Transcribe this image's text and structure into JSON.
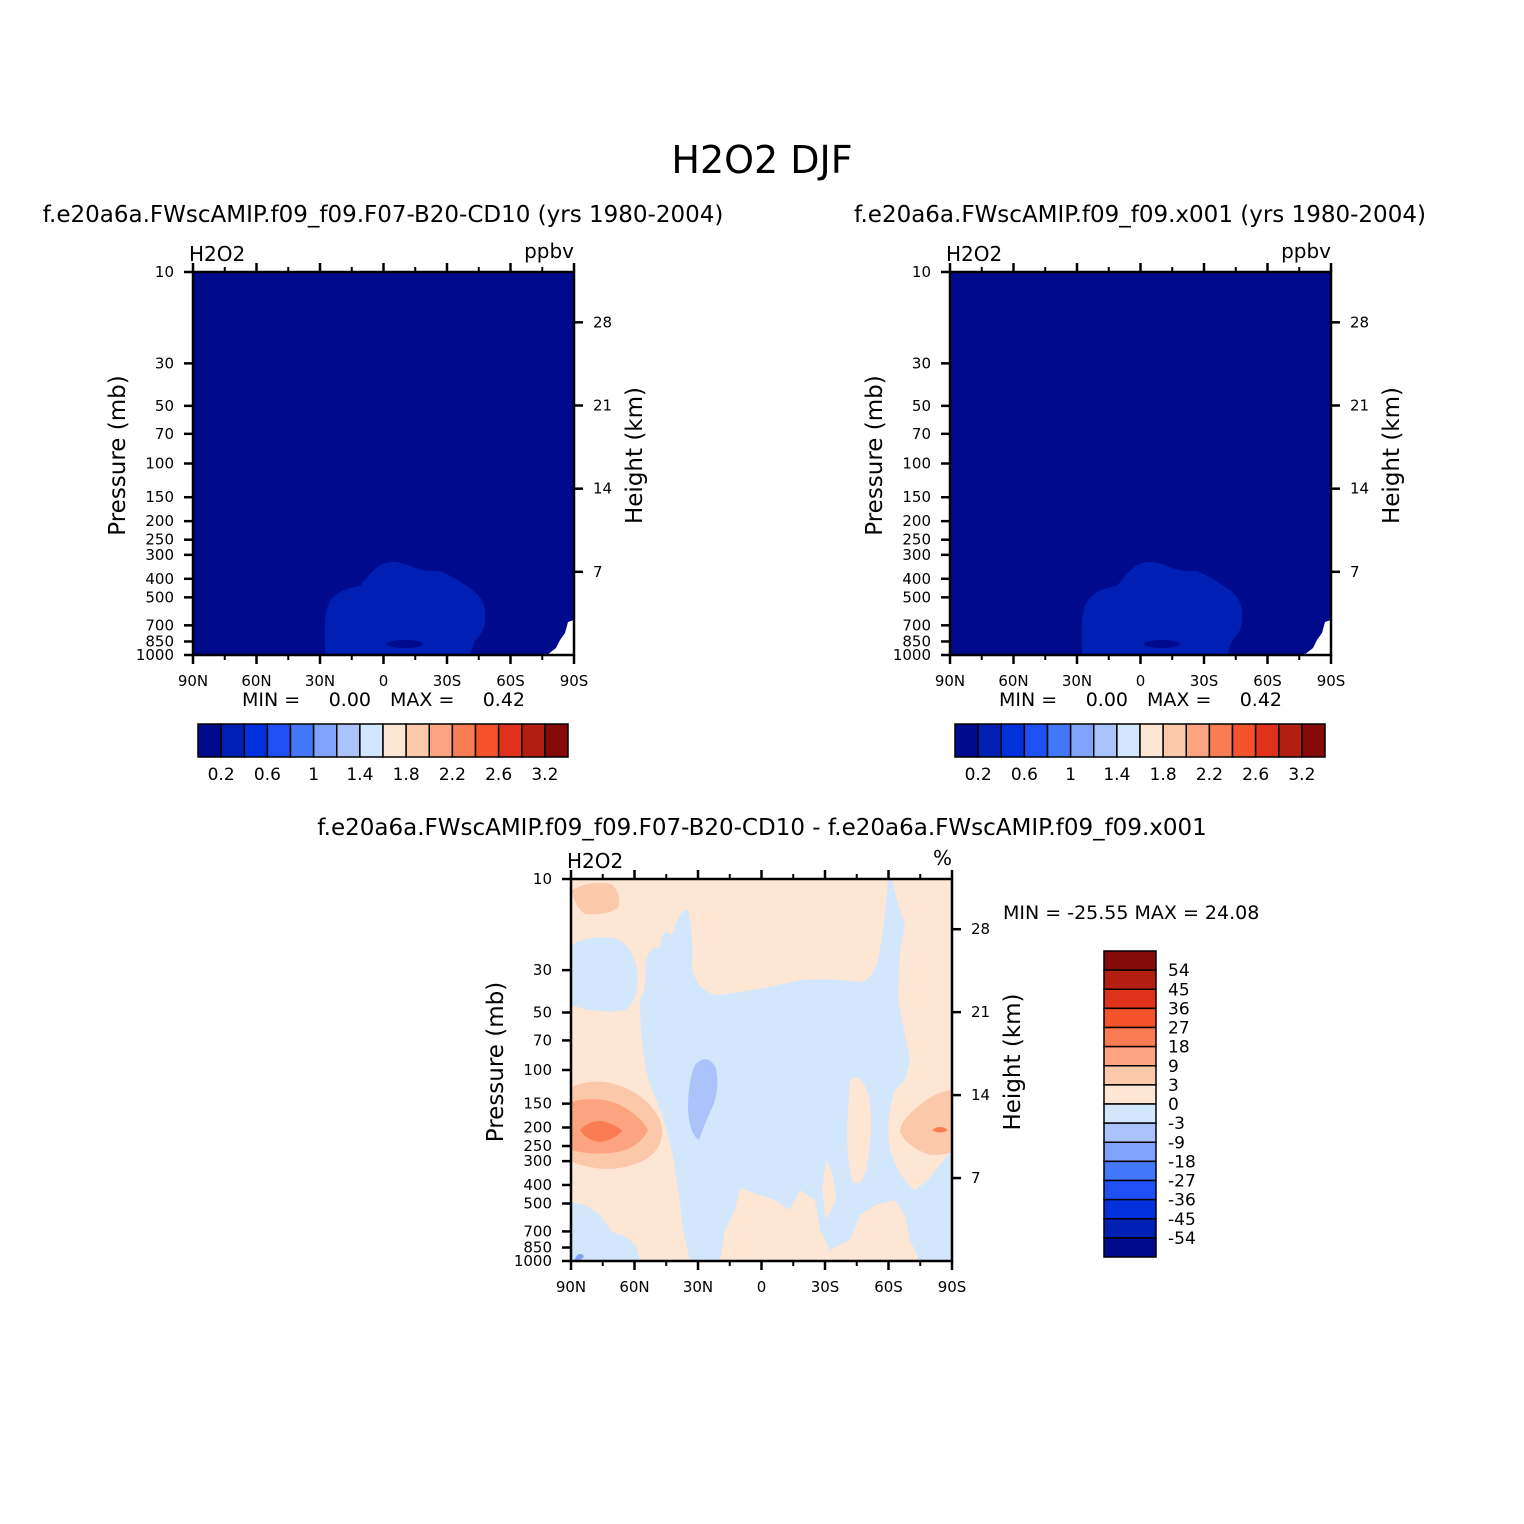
{
  "title": "H2O2 DJF",
  "panels": [
    {
      "case": "f.e20a6a.FWscAMIP.f09_f09.F07-B20-CD10 (yrs 1980-2004)",
      "variable": "H2O2",
      "units": "ppbv",
      "min_label": "MIN =",
      "min_value": "0.00",
      "max_label": "MAX =",
      "max_value": "0.42"
    },
    {
      "case": "f.e20a6a.FWscAMIP.f09_f09.x001 (yrs 1980-2004)",
      "variable": "H2O2",
      "units": "ppbv",
      "min_label": "MIN =",
      "min_value": "0.00",
      "max_label": "MAX =",
      "max_value": "0.42"
    }
  ],
  "diff": {
    "case": "f.e20a6a.FWscAMIP.f09_f09.F07-B20-CD10 - f.e20a6a.FWscAMIP.f09_f09.x001",
    "variable": "H2O2",
    "units": "%",
    "minmax": "MIN = -25.55   MAX =  24.08"
  },
  "chart_data": [
    {
      "type": "heatmap",
      "title": "f.e20a6a.FWscAMIP.f09_f09.F07-B20-CD10 (yrs 1980-2004)",
      "xlabel": "",
      "ylabel": "Pressure (mb)",
      "y2label": "Height (km)",
      "x_ticks": [
        "90N",
        "60N",
        "30N",
        "0",
        "30S",
        "60S",
        "90S"
      ],
      "y_ticks": [
        "10",
        "30",
        "50",
        "70",
        "100",
        "150",
        "200",
        "250",
        "300",
        "400",
        "500",
        "700",
        "850",
        "1000"
      ],
      "y2_ticks": [
        "28",
        "21",
        "14",
        "7"
      ],
      "colorbar_labels": [
        "0.2",
        "0.6",
        "1",
        "1.4",
        "1.8",
        "2.2",
        "2.6",
        "3.2"
      ],
      "colors": [
        "#000a8c",
        "#0020b4",
        "#0031dc",
        "#1f50f5",
        "#4378fa",
        "#7fa3fa",
        "#aac3fa",
        "#d2e6fc",
        "#fde6d4",
        "#fcc8aa",
        "#fca37f",
        "#fa7c52",
        "#f5532c",
        "#e0321a",
        "#b41e10",
        "#870a0a"
      ],
      "min": 0.0,
      "max": 0.42
    },
    {
      "type": "heatmap",
      "title": "f.e20a6a.FWscAMIP.f09_f09.x001 (yrs 1980-2004)",
      "xlabel": "",
      "ylabel": "Pressure (mb)",
      "y2label": "Height (km)",
      "x_ticks": [
        "90N",
        "60N",
        "30N",
        "0",
        "30S",
        "60S",
        "90S"
      ],
      "y_ticks": [
        "10",
        "30",
        "50",
        "70",
        "100",
        "150",
        "200",
        "250",
        "300",
        "400",
        "500",
        "700",
        "850",
        "1000"
      ],
      "y2_ticks": [
        "28",
        "21",
        "14",
        "7"
      ],
      "colorbar_labels": [
        "0.2",
        "0.6",
        "1",
        "1.4",
        "1.8",
        "2.2",
        "2.6",
        "3.2"
      ],
      "min": 0.0,
      "max": 0.42
    },
    {
      "type": "heatmap",
      "title": "f.e20a6a.FWscAMIP.f09_f09.F07-B20-CD10 - f.e20a6a.FWscAMIP.f09_f09.x001",
      "xlabel": "",
      "ylabel": "Pressure (mb)",
      "y2label": "Height (km)",
      "x_ticks": [
        "90N",
        "60N",
        "30N",
        "0",
        "30S",
        "60S",
        "90S"
      ],
      "y_ticks": [
        "10",
        "30",
        "50",
        "70",
        "100",
        "150",
        "200",
        "250",
        "300",
        "400",
        "500",
        "700",
        "850",
        "1000"
      ],
      "y2_ticks": [
        "28",
        "21",
        "14",
        "7"
      ],
      "colorbar_labels": [
        "54",
        "45",
        "36",
        "27",
        "18",
        "9",
        "3",
        "0",
        "-3",
        "-9",
        "-18",
        "-27",
        "-36",
        "-45",
        "-54"
      ],
      "colors": [
        "#870a0a",
        "#b41e10",
        "#e0321a",
        "#f5532c",
        "#fa7c52",
        "#fca37f",
        "#fcc8aa",
        "#fde6d4",
        "#d2e6fc",
        "#aac3fa",
        "#7fa3fa",
        "#4378fa",
        "#1f50f5",
        "#0031dc",
        "#0020b4",
        "#000a8c"
      ],
      "min": -25.55,
      "max": 24.08
    }
  ],
  "axis_labels": {
    "pressure": "Pressure (mb)",
    "height": "Height (km)"
  }
}
